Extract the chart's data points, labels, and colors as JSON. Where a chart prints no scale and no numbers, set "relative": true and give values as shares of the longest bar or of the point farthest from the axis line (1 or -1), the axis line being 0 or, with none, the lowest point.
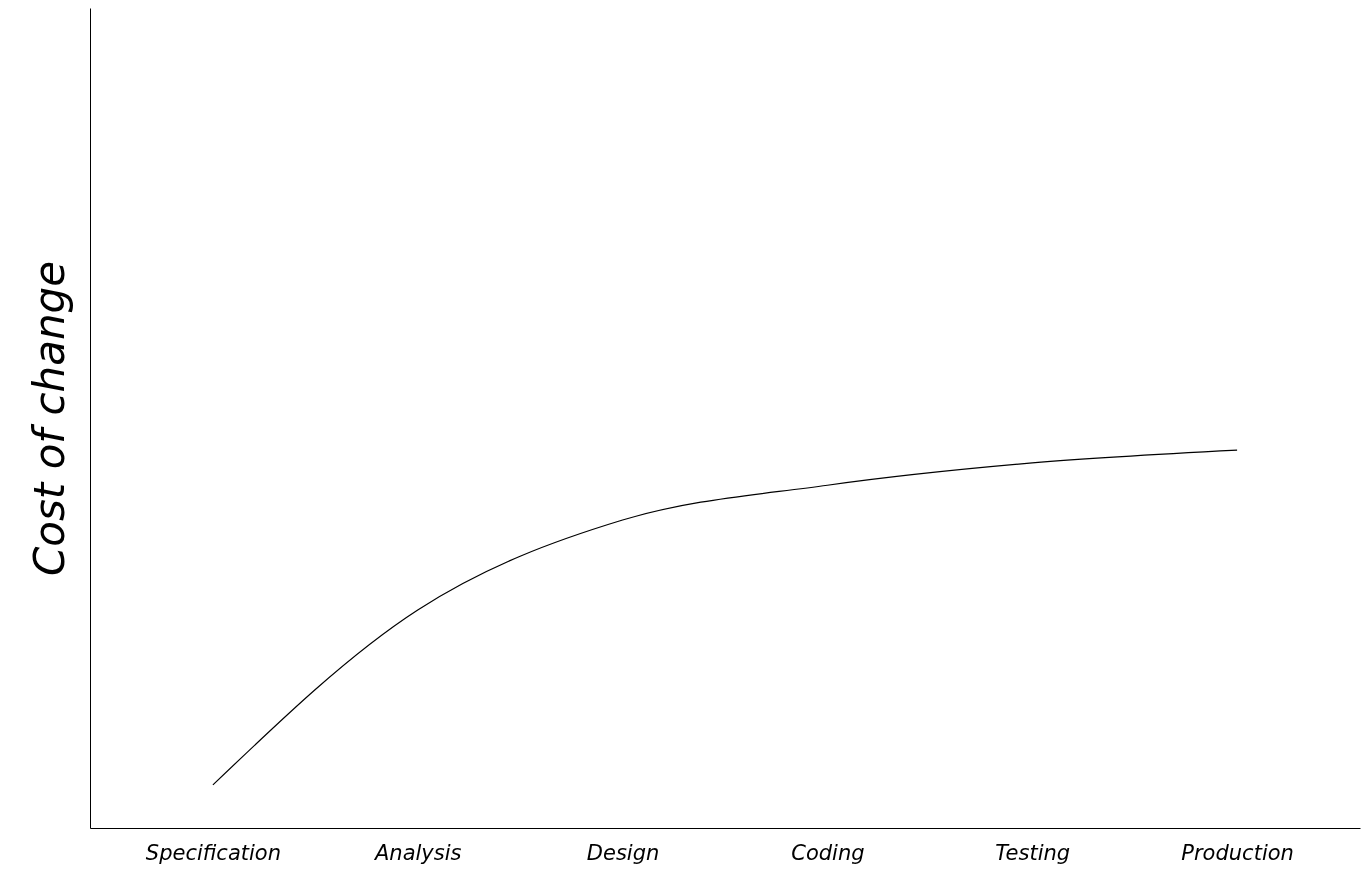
{
  "chart_data": {
    "type": "line",
    "relative": true,
    "ylabel": "Cost of change",
    "categories": [
      "Specification",
      "Analysis",
      "Design",
      "Coding",
      "Testing",
      "Production"
    ],
    "series": [
      {
        "color": "#000000",
        "values": [
          0.114,
          0.577,
          0.815,
          0.907,
          0.966,
          1
        ]
      }
    ],
    "grid": false,
    "marker": "none",
    "line_style": "solid"
  }
}
